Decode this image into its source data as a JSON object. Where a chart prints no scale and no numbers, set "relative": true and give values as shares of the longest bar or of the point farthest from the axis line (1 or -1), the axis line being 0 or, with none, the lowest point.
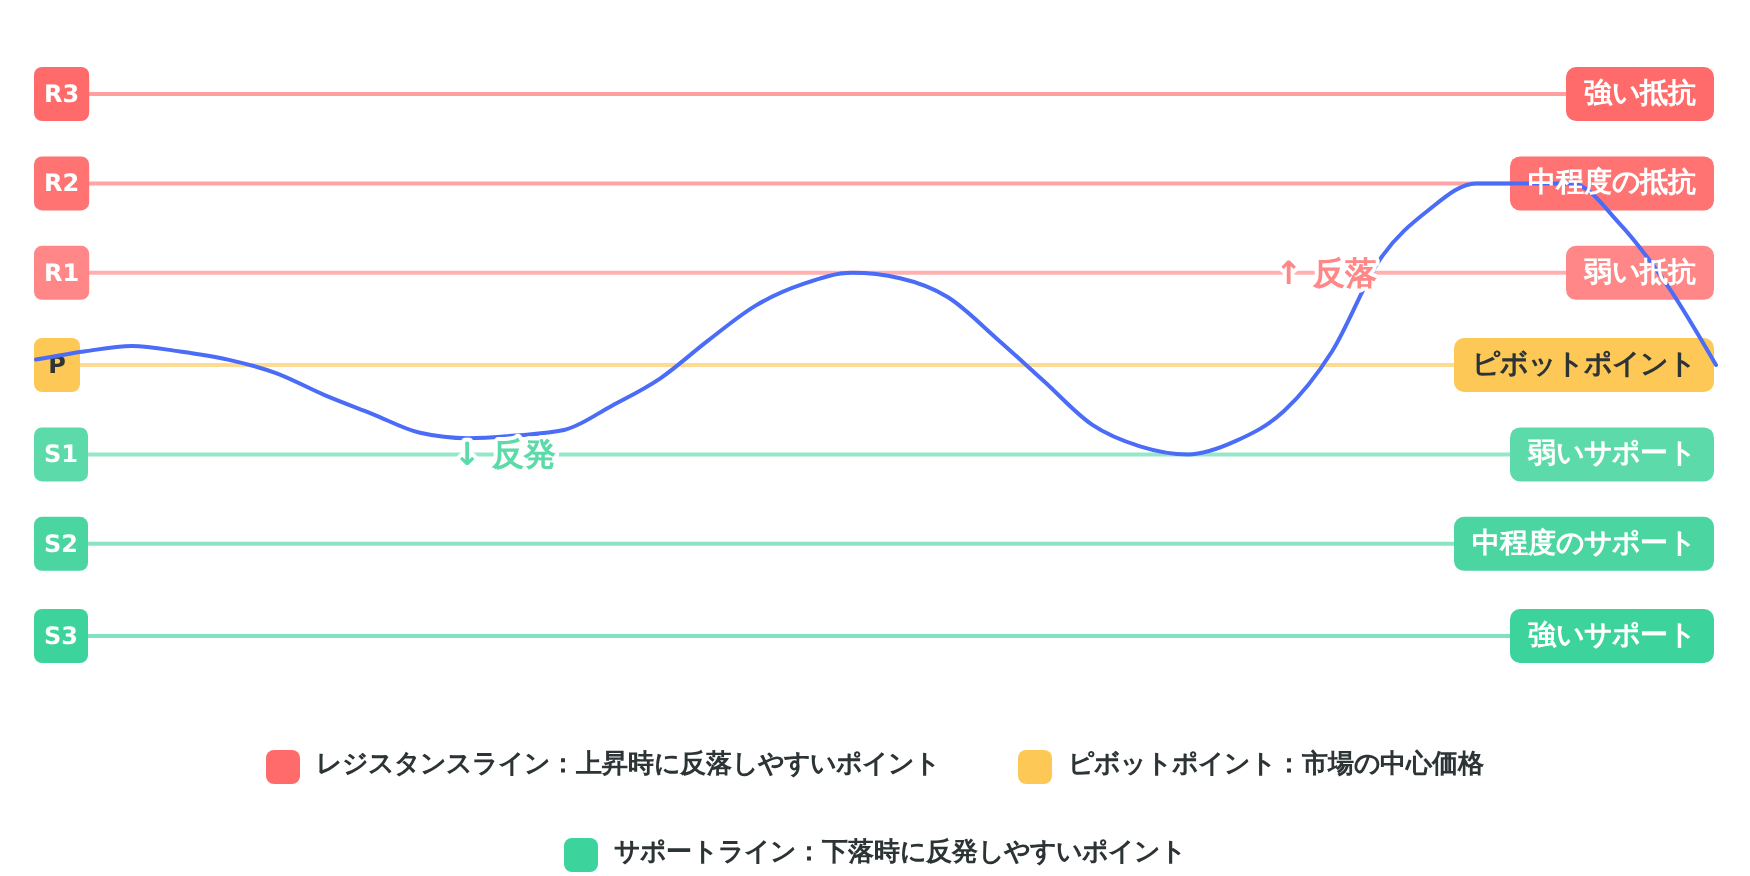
{
  "chart_data": {
    "type": "line",
    "relative": true,
    "categories": [
      null,
      null,
      null,
      null,
      null,
      null,
      null,
      null,
      null,
      null,
      null,
      null,
      null,
      null,
      null,
      null,
      null,
      null,
      null,
      null,
      null,
      null,
      null,
      null,
      null,
      null,
      null,
      null,
      null,
      null,
      null,
      null,
      null,
      null,
      null,
      null
    ],
    "series": [
      {
        "color": "#4a6cf7",
        "values": [
          0.35,
          0.38,
          0.4,
          0.38,
          0.35,
          0.3,
          0.22,
          0.15,
          0.08,
          0.06,
          0.07,
          0.09,
          0.18,
          0.28,
          0.42,
          0.55,
          0.63,
          0.67,
          0.65,
          0.58,
          0.43,
          0.27,
          0.11,
          0.03,
          0,
          0.05,
          0.16,
          0.38,
          0.72,
          0.9,
          1,
          1,
          1,
          0.85,
          0.62,
          0.33
        ]
      },
      {
        "name": "レジスタンスライン：上昇時に反落しやすいポイント",
        "color": "#ff6b6b",
        "values": [
          null,
          null,
          null,
          null,
          null,
          null,
          null,
          null,
          null,
          null,
          null,
          null,
          null,
          null,
          null,
          null,
          null,
          null,
          null,
          null,
          null,
          null,
          null,
          null,
          null,
          null,
          null,
          null,
          null,
          null,
          null,
          null,
          null,
          null,
          null,
          null
        ]
      },
      {
        "name": "ピボットポイント：市場の中心価格",
        "color": "#fec857",
        "values": [
          null,
          null,
          null,
          null,
          null,
          null,
          null,
          null,
          null,
          null,
          null,
          null,
          null,
          null,
          null,
          null,
          null,
          null,
          null,
          null,
          null,
          null,
          null,
          null,
          null,
          null,
          null,
          null,
          null,
          null,
          null,
          null,
          null,
          null,
          null,
          null
        ]
      },
      {
        "name": "サポートライン：下落時に反発しやすいポイント",
        "color": "#3dd39c",
        "values": [
          null,
          null,
          null,
          null,
          null,
          null,
          null,
          null,
          null,
          null,
          null,
          null,
          null,
          null,
          null,
          null,
          null,
          null,
          null,
          null,
          null,
          null,
          null,
          null,
          null,
          null,
          null,
          null,
          null,
          null,
          null,
          null,
          null,
          null,
          null,
          null
        ]
      }
    ],
    "ref_lines": [
      {
        "axis": "y",
        "value": 1.33,
        "label": "R3",
        "color": "#ff6b6b"
      },
      {
        "axis": "y",
        "value": 1,
        "label": "R2",
        "color": "#ff7373"
      },
      {
        "axis": "y",
        "value": 0.67,
        "label": "R1",
        "color": "#ff8787"
      },
      {
        "axis": "y",
        "value": 0.33,
        "label": "P",
        "color": "#fec857"
      },
      {
        "axis": "y",
        "value": 0,
        "label": "S1",
        "color": "#5cdaa9"
      },
      {
        "axis": "y",
        "value": -0.33,
        "label": "S2",
        "color": "#4ad5a1"
      },
      {
        "axis": "y",
        "value": -0.67,
        "label": "S3",
        "color": "#3dd39c"
      }
    ],
    "annotations": [
      {
        "text": "強い抵抗",
        "y": 1.33
      },
      {
        "text": "中程度の抵抗",
        "y": 1
      },
      {
        "text": "弱い抵抗",
        "y": 0.67
      },
      {
        "text": "ピボットポイント",
        "y": 0.33
      },
      {
        "text": "弱いサポート",
        "y": 0
      },
      {
        "text": "中程度のサポート",
        "y": -0.33
      },
      {
        "text": "強いサポート",
        "y": -0.67
      },
      {
        "text": "↓ 反発",
        "y": 0
      },
      {
        "text": "↑ 反落",
        "y": 0.67
      }
    ],
    "legend": "bottom"
  }
}
